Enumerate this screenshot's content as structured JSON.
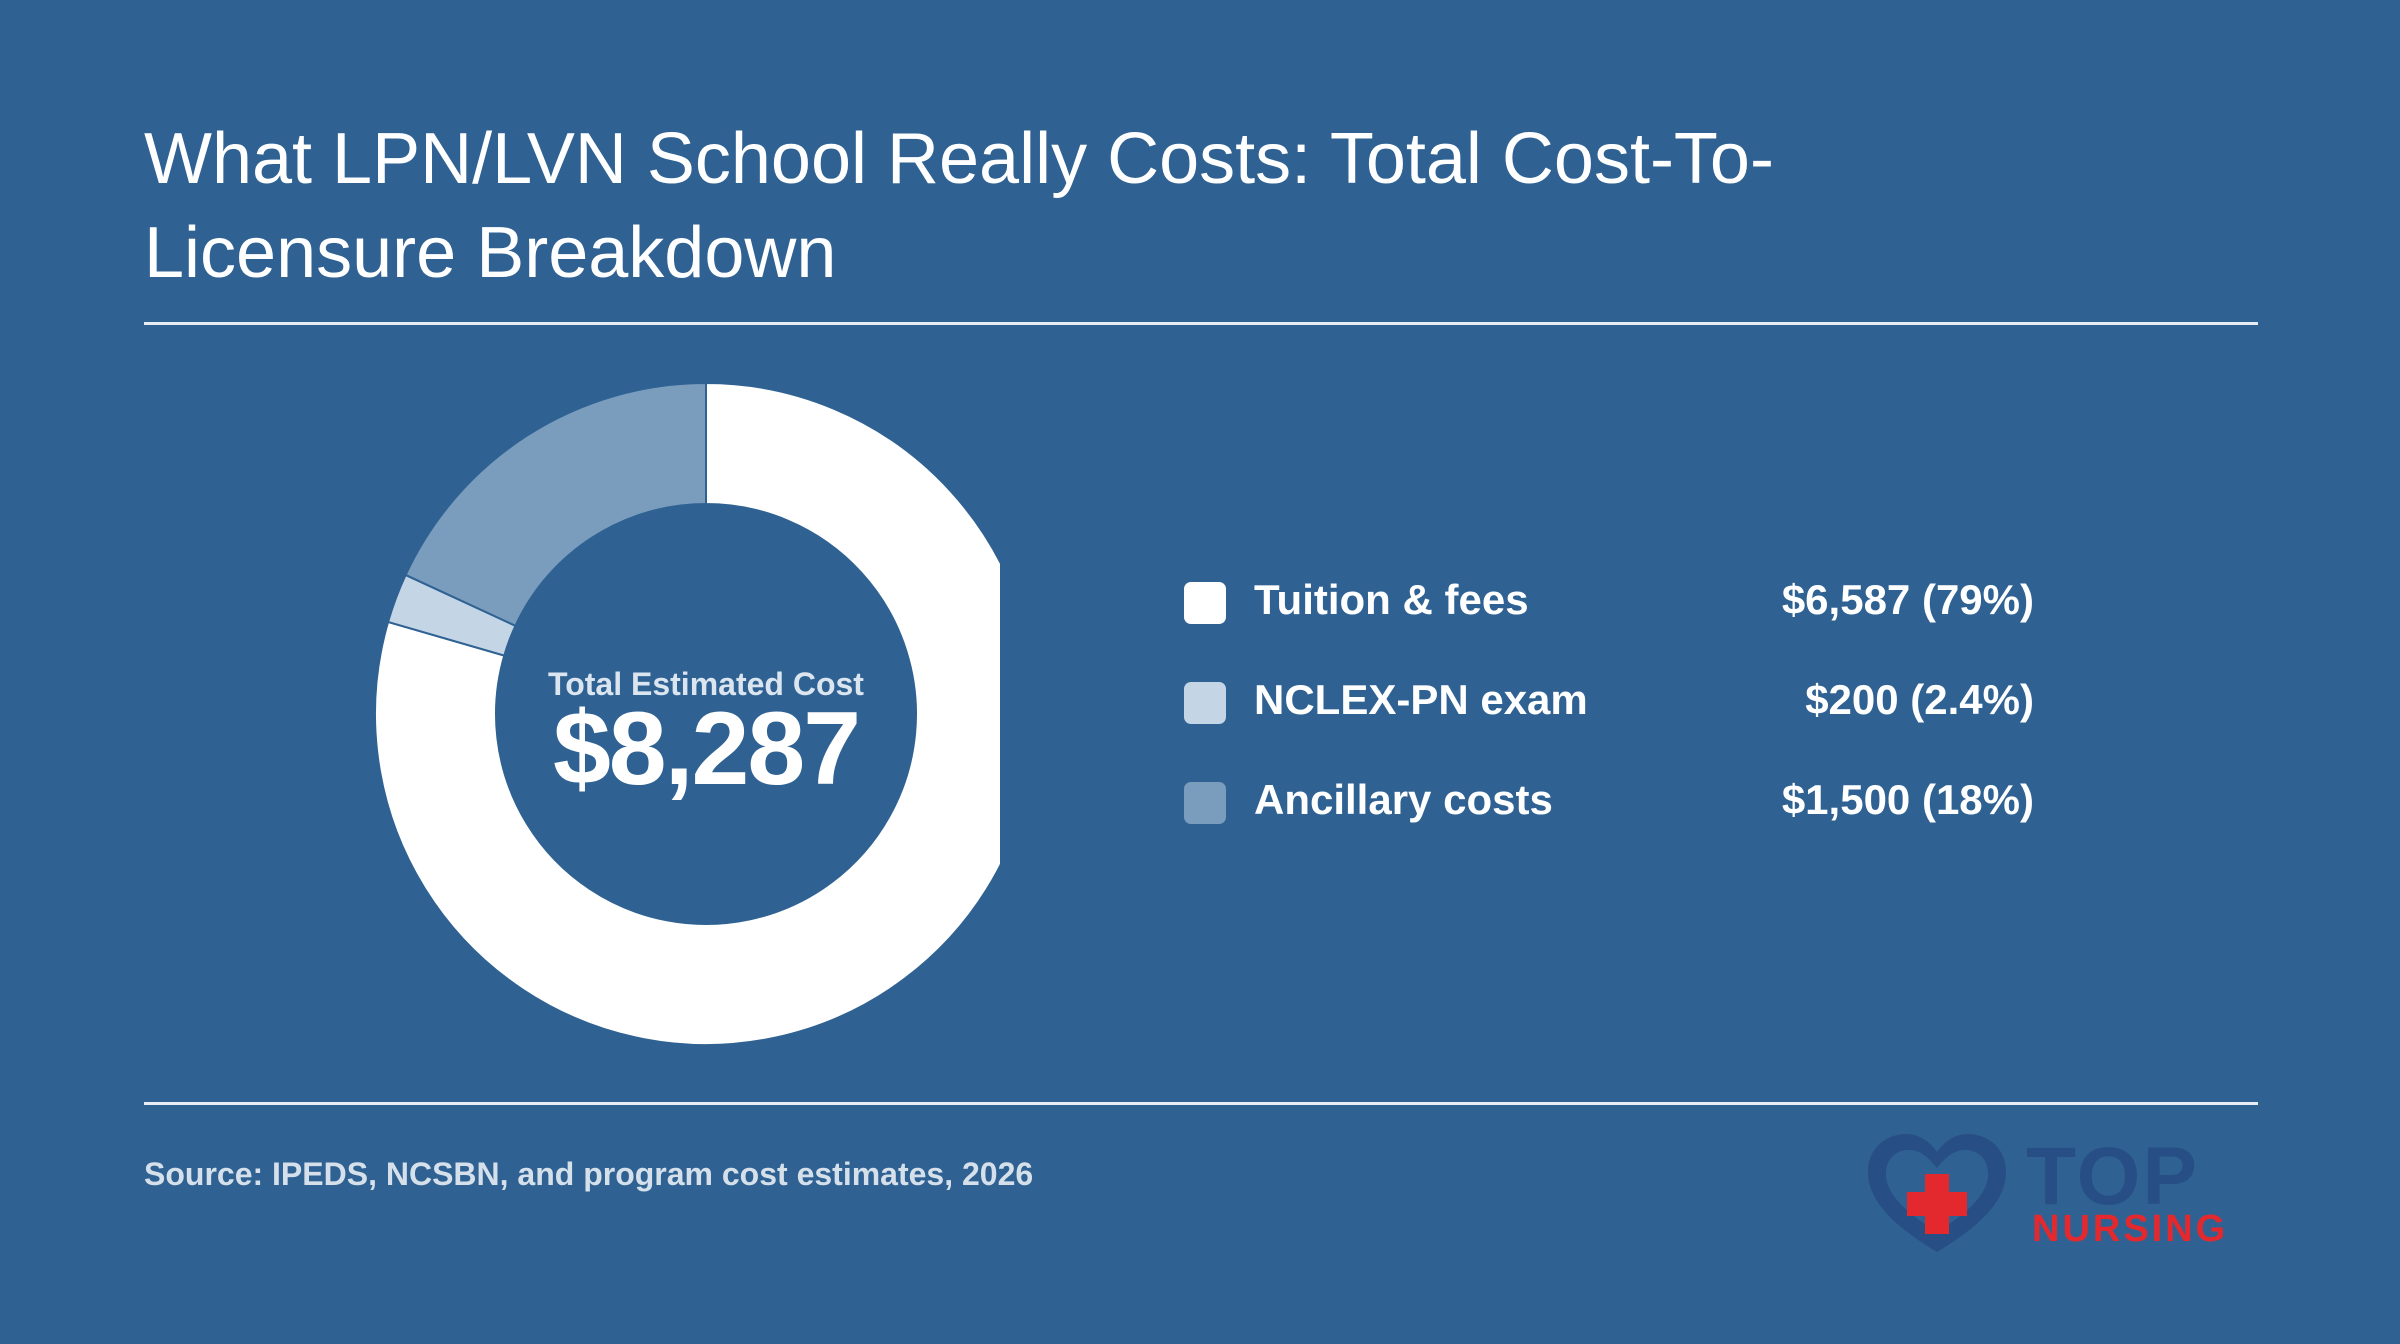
{
  "title": "What LPN/LVN School Really Costs: Total Cost-To-Licensure Breakdown",
  "chart_data": {
    "type": "pie",
    "donut": true,
    "center_label": "Total Estimated Cost",
    "center_value": "$8,287",
    "total": 8287,
    "slices": [
      {
        "label": "Tuition & fees",
        "value": 6587,
        "display": "$6,587 (79%)",
        "color": "#ffffff"
      },
      {
        "label": "NCLEX-PN exam",
        "value": 200,
        "display": "$200 (2.4%)",
        "color": "#c4d5e6"
      },
      {
        "label": "Ancillary costs",
        "value": 1500,
        "display": "$1,500 (18%)",
        "color": "#7a9dbd"
      }
    ],
    "legend_position": "right"
  },
  "source": "Source: IPEDS, NCSBN, and program cost estimates, 2026",
  "logo": {
    "top": "TOP",
    "nursing": "NURSING"
  },
  "colors": {
    "background": "#2f6293",
    "accent_red": "#e3292e",
    "logo_blue": "#274f86"
  }
}
